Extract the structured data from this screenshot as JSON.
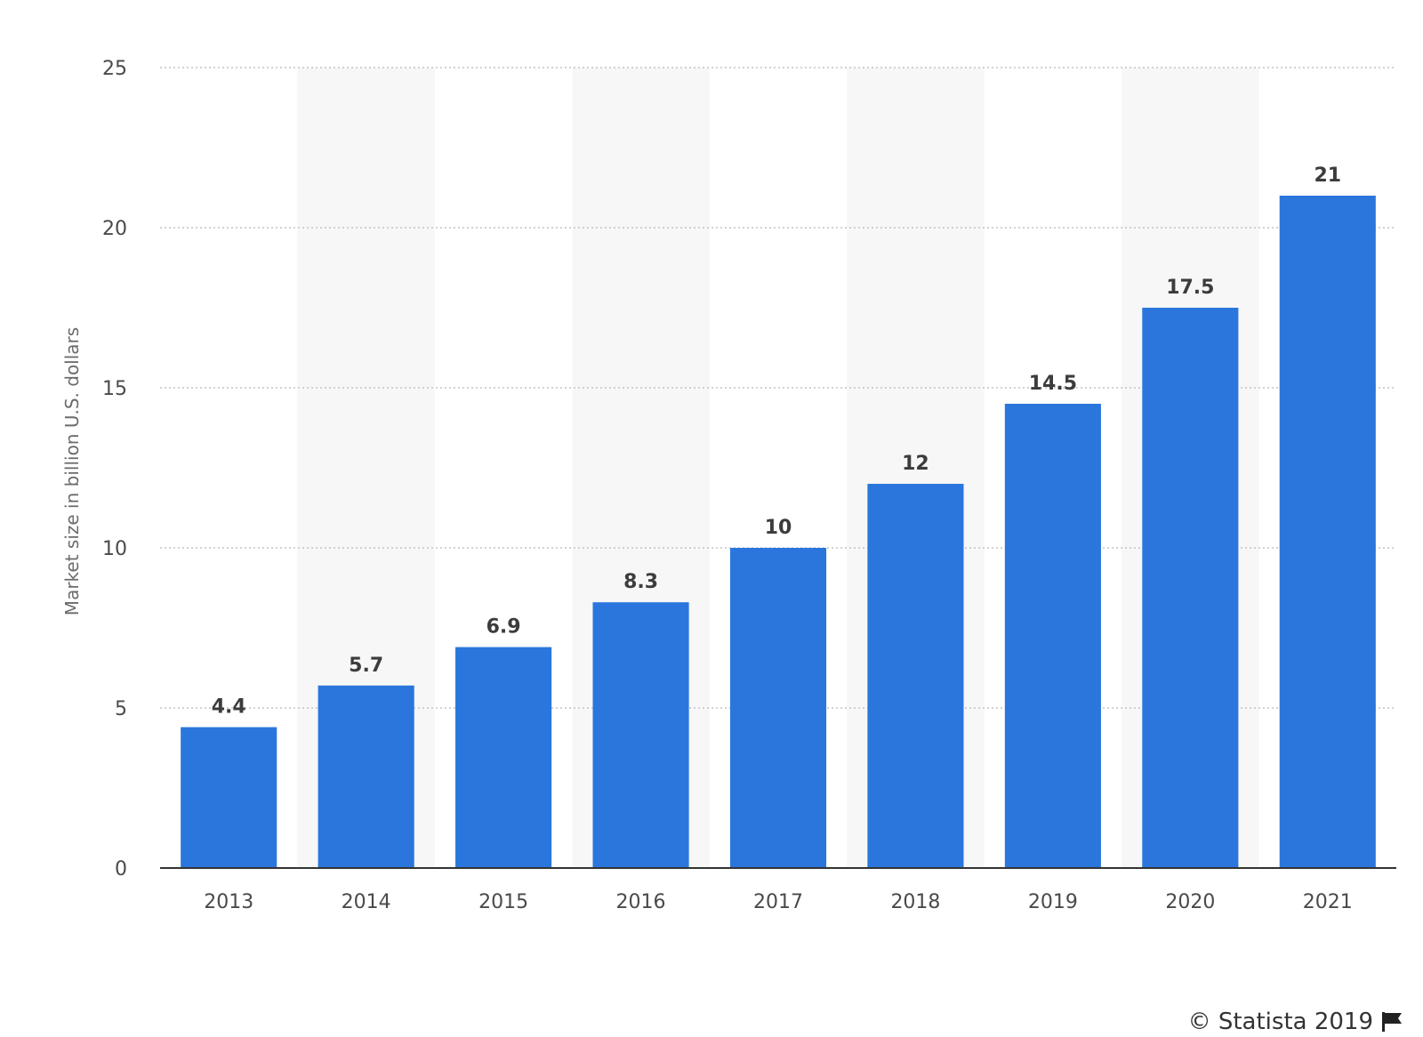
{
  "chart_data": {
    "type": "bar",
    "categories": [
      "2013",
      "2014",
      "2015",
      "2016",
      "2017",
      "2018",
      "2019",
      "2020",
      "2021"
    ],
    "values": [
      4.4,
      5.7,
      6.9,
      8.3,
      10,
      12,
      14.5,
      17.5,
      21
    ],
    "value_labels": [
      "4.4",
      "5.7",
      "6.9",
      "8.3",
      "10",
      "12",
      "14.5",
      "17.5",
      "21"
    ],
    "title": "",
    "xlabel": "",
    "ylabel": "Market size in billion U.S. dollars",
    "ylim": [
      0,
      25
    ],
    "yticks": [
      0,
      5,
      10,
      15,
      20,
      25
    ],
    "grid": true,
    "bar_color": "#2a76dd",
    "band_color": "#f7f7f7"
  },
  "credit": {
    "text": "© Statista 2019",
    "icon": "flag-icon"
  }
}
